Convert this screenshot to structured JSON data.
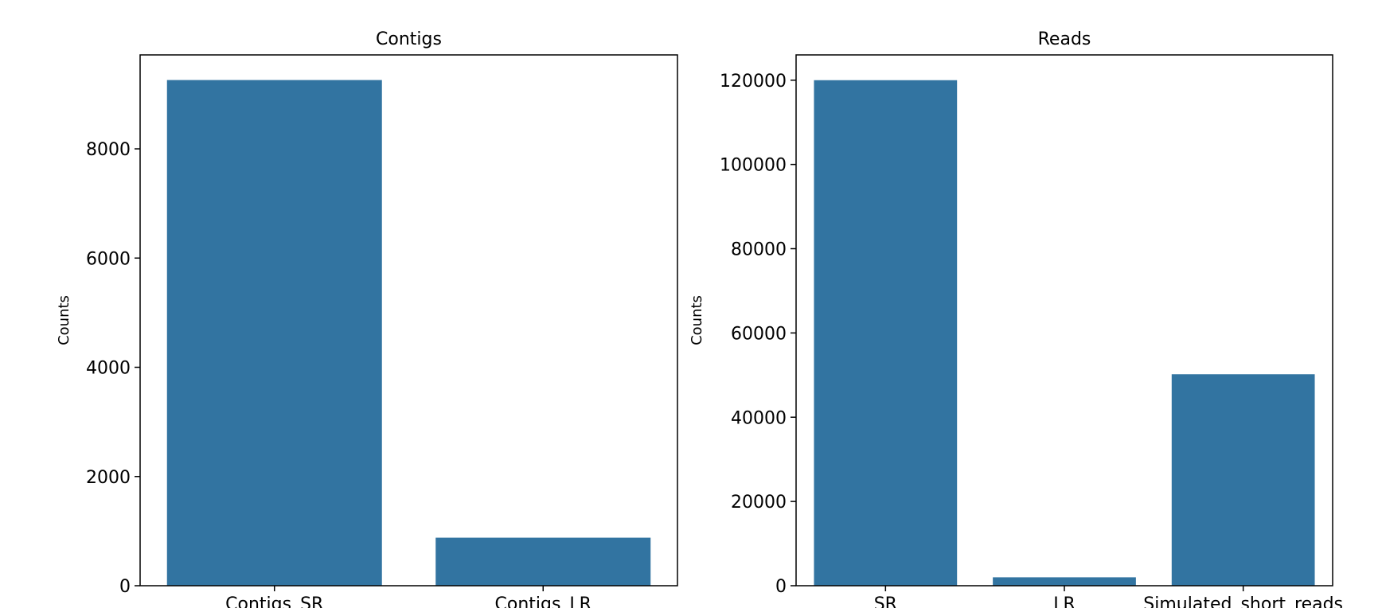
{
  "chart_data": [
    {
      "type": "bar",
      "title": "Contigs",
      "xlabel": "",
      "ylabel": "Counts",
      "categories": [
        "Contigs_SR",
        "Contigs_LR"
      ],
      "values": [
        9260,
        880
      ],
      "ylim": [
        0,
        9720
      ],
      "yticks": [
        0,
        2000,
        4000,
        6000,
        8000
      ],
      "bar_color": "#3274a1",
      "grid": false,
      "legend": "none"
    },
    {
      "type": "bar",
      "title": "Reads",
      "xlabel": "",
      "ylabel": "Counts",
      "categories": [
        "SR",
        "LR",
        "Simulated_short_reads"
      ],
      "values": [
        120000,
        2000,
        50200
      ],
      "ylim": [
        0,
        126000
      ],
      "yticks": [
        0,
        20000,
        40000,
        60000,
        80000,
        100000,
        120000
      ],
      "bar_color": "#3274a1",
      "grid": false,
      "legend": "none"
    }
  ]
}
